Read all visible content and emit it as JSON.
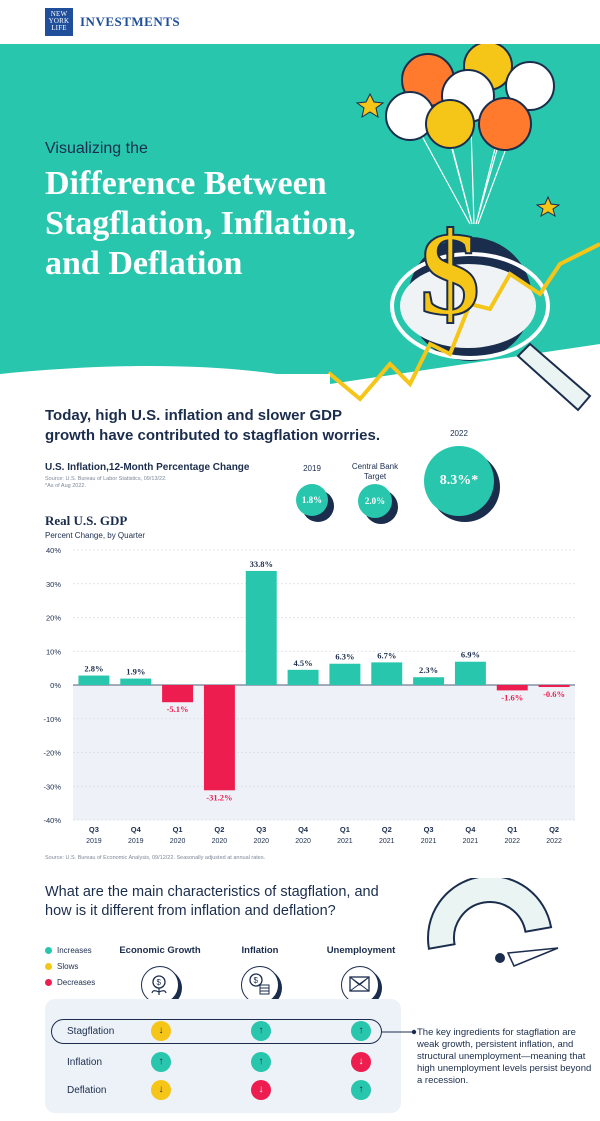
{
  "header": {
    "logo_text": "NEW YORK LIFE",
    "brand": "INVESTMENTS"
  },
  "hero": {
    "subtitle": "Visualizing the",
    "title": "Difference Between Stagflation, Inflation, and Deflation"
  },
  "intro": "Today, high U.S. inflation and slower GDP growth have contributed to stagflation worries.",
  "inflation": {
    "title": "U.S. Inflation,12-Month Percentage Change",
    "source": "Source: U.S. Bureau of Labor Statistics, 09/13/22.",
    "footnote": "*As of Aug 2022.",
    "bubbles": [
      {
        "label": "2019",
        "value": "1.8%"
      },
      {
        "label": "Central Bank Target",
        "value": "2.0%"
      },
      {
        "label": "2022",
        "value": "8.3%*"
      }
    ]
  },
  "chart_data": {
    "type": "bar",
    "title": "Real U.S. GDP",
    "subtitle": "Percent Change, by Quarter",
    "categories": [
      "Q3 2019",
      "Q4 2019",
      "Q1 2020",
      "Q2 2020",
      "Q3 2020",
      "Q4 2020",
      "Q1 2021",
      "Q2 2021",
      "Q3 2021",
      "Q4 2021",
      "Q1 2022",
      "Q2 2022"
    ],
    "quarters": [
      "Q3",
      "Q4",
      "Q1",
      "Q2",
      "Q3",
      "Q4",
      "Q1",
      "Q2",
      "Q3",
      "Q4",
      "Q1",
      "Q2"
    ],
    "years": [
      "2019",
      "2019",
      "2020",
      "2020",
      "2020",
      "2020",
      "2021",
      "2021",
      "2021",
      "2021",
      "2022",
      "2022"
    ],
    "values": [
      2.8,
      1.9,
      -5.1,
      -31.2,
      33.8,
      4.5,
      6.3,
      6.7,
      2.3,
      6.9,
      -1.6,
      -0.6
    ],
    "value_labels": [
      "2.8%",
      "1.9%",
      "-5.1%",
      "-31.2%",
      "33.8%",
      "4.5%",
      "6.3%",
      "6.7%",
      "2.3%",
      "6.9%",
      "-1.6%",
      "-0.6%"
    ],
    "yticks": [
      40,
      30,
      20,
      10,
      0,
      -10,
      -20,
      -30,
      -40
    ],
    "ytick_labels": [
      "40%",
      "30%",
      "20%",
      "10%",
      "0%",
      "-10%",
      "-20%",
      "-30%",
      "-40%"
    ],
    "ylim": [
      -40,
      40
    ],
    "colors": {
      "positive": "#27c6ad",
      "negative": "#ee1d4f",
      "negative_area": "#eef2f8"
    },
    "source": "Source: U.S. Bureau of Economic Analysis, 09/12/22. Seasonally adjusted at annual rates."
  },
  "characteristics": {
    "question": "What are the main characteristics of stagflation, and how is it different from inflation and deflation?",
    "legend": [
      {
        "label": "Increases",
        "color": "#27c6ad"
      },
      {
        "label": "Slows",
        "color": "#f5c518"
      },
      {
        "label": "Decreases",
        "color": "#ee1d4f"
      }
    ],
    "columns": [
      "Economic Growth",
      "Inflation",
      "Unemployment"
    ],
    "column_icons": [
      "plant-coin-icon",
      "coins-icon",
      "envelope-icon"
    ],
    "rows": [
      {
        "label": "Stagflation",
        "values": [
          "slows",
          "increases",
          "increases"
        ]
      },
      {
        "label": "Inflation",
        "values": [
          "increases",
          "increases",
          "decreases"
        ]
      },
      {
        "label": "Deflation",
        "values": [
          "slows",
          "decreases",
          "increases"
        ]
      }
    ],
    "note": "The key ingredients for stagflation are weak growth, persistent inflation, and structural unemployment—meaning that high unemployment levels persist beyond a recession."
  }
}
